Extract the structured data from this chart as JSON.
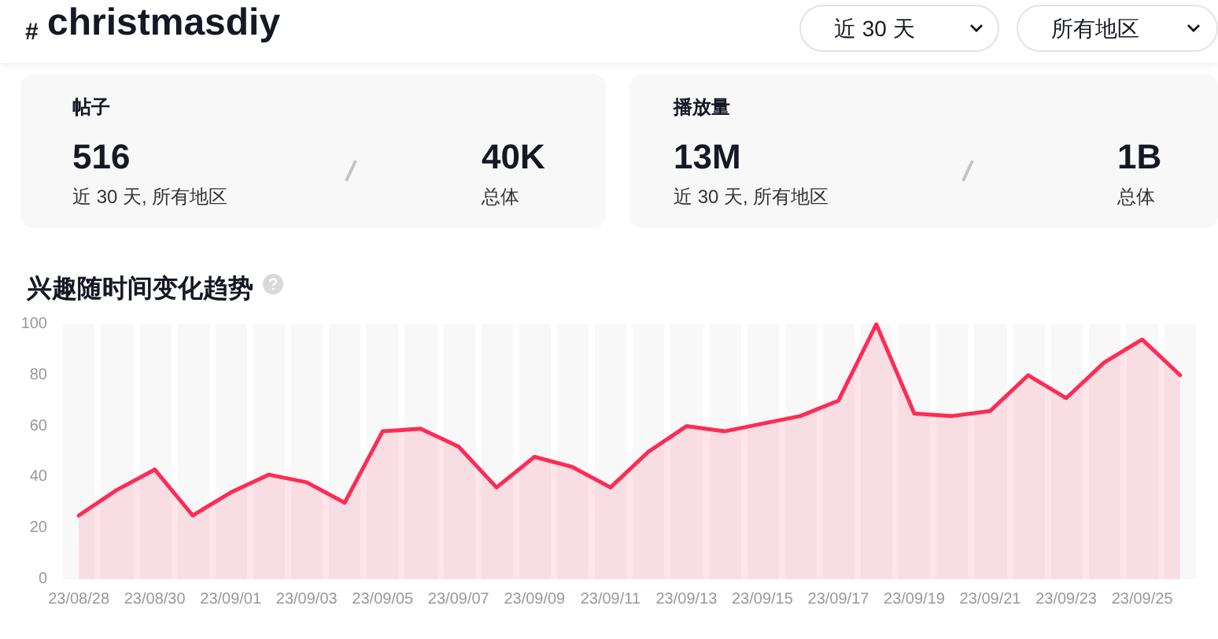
{
  "chart_data": {
    "type": "area",
    "title": "兴趣随时间变化趋势",
    "annotations": [
      "#",
      "christmasdiy",
      "近 30 天",
      "所有地区",
      "帖子",
      "516",
      "近 30 天, 所有地区",
      "40K",
      "总体",
      "播放量",
      "13M",
      "近 30 天, 所有地区",
      "1B",
      "总体"
    ],
    "categories": [
      "23/08/28",
      null,
      "23/08/30",
      null,
      "23/09/01",
      null,
      "23/09/03",
      null,
      "23/09/05",
      null,
      "23/09/07",
      null,
      "23/09/09",
      null,
      "23/09/11",
      null,
      "23/09/13",
      null,
      "23/09/15",
      null,
      "23/09/17",
      null,
      "23/09/19",
      null,
      "23/09/21",
      null,
      "23/09/23",
      null,
      "23/09/25",
      null
    ],
    "series": [
      {
        "color": "#fe2c55",
        "values": [
          25,
          35,
          43,
          25,
          34,
          41,
          38,
          30,
          58,
          59,
          52,
          36,
          48,
          44,
          36,
          50,
          60,
          58,
          61,
          64,
          70,
          100,
          65,
          64,
          66,
          80,
          71,
          85,
          94,
          80
        ]
      }
    ],
    "ylim": [
      0,
      100
    ],
    "yticks": [
      0,
      20,
      40,
      60,
      80,
      100
    ],
    "grid": "x",
    "marker": "none",
    "line_style": "solid"
  }
}
